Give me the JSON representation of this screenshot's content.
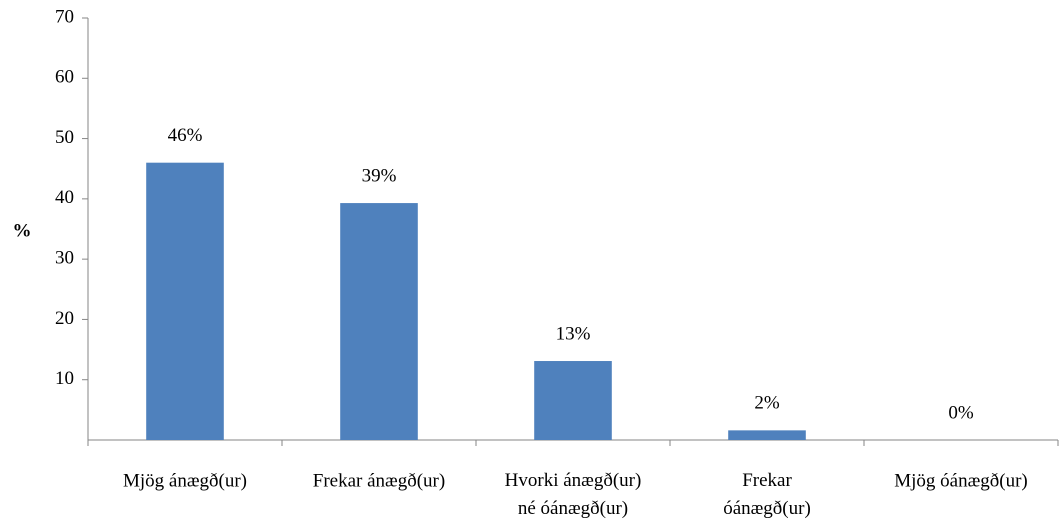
{
  "chart_data": {
    "type": "bar",
    "y_label": "%",
    "categories": [
      "Mjög ánægð(ur)",
      "Frekar ánægð(ur)",
      "Hvorki ánægð(ur)\nné óánægð(ur)",
      "Frekar\nóánægð(ur)",
      "Mjög óánægð(ur)"
    ],
    "values": [
      46,
      39.3,
      13.1,
      1.6,
      0
    ],
    "value_labels": [
      "46%",
      "39%",
      "13%",
      "2%",
      "0%"
    ],
    "color": "#4f81bd",
    "ylim": [
      0,
      70
    ],
    "yticks": [
      10,
      20,
      30,
      40,
      50,
      60,
      70
    ],
    "grid": false
  }
}
